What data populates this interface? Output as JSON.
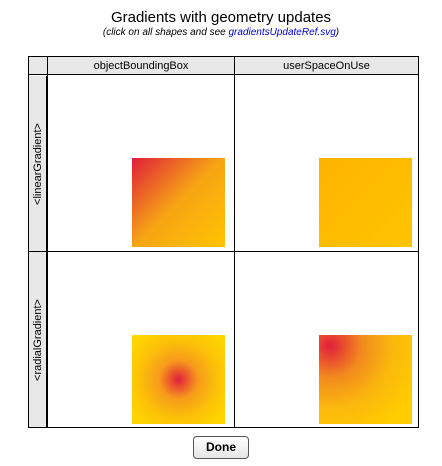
{
  "header": {
    "title": "Gradients with geometry updates",
    "subtitle_prefix": "(click on all shapes and see ",
    "subtitle_link": "gradientsUpdateRef.svg",
    "subtitle_suffix": ")"
  },
  "table": {
    "columns": [
      "objectBoundingBox",
      "userSpaceOnUse"
    ],
    "rows": [
      "<linearGradient>",
      "<radialGradient>"
    ]
  },
  "colors": {
    "gradient_red": "#e01e3a",
    "gradient_orange": "#f7a614",
    "gradient_yellow": "#ffc300",
    "header_bg": "#e8e8e8",
    "link": "#0000cc"
  },
  "footer": {
    "done_label": "Done"
  }
}
